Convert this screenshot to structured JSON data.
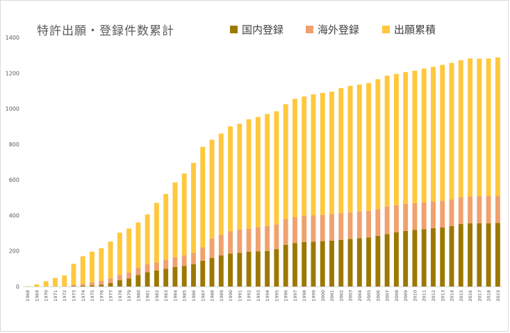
{
  "chart_data": {
    "type": "bar",
    "stacked": true,
    "title": "特許出願・登録件数累計",
    "legend_position": "top",
    "grid": false,
    "ylim": [
      0,
      1400
    ],
    "yticks": [
      0,
      200,
      400,
      600,
      800,
      1000,
      1200,
      1400
    ],
    "categories": [
      "1968",
      "1969",
      "1970",
      "1971",
      "1972",
      "1973",
      "1974",
      "1975",
      "1976",
      "1977",
      "1978",
      "1979",
      "1980",
      "1981",
      "1982",
      "1983",
      "1984",
      "1985",
      "1986",
      "1987",
      "1988",
      "1989",
      "1990",
      "1991",
      "1992",
      "1993",
      "1994",
      "1995",
      "1996",
      "1997",
      "1998",
      "1999",
      "2000",
      "2001",
      "2002",
      "2003",
      "2004",
      "2005",
      "2006",
      "2007",
      "2008",
      "2009",
      "2010",
      "2011",
      "2012",
      "2013",
      "2014",
      "2015",
      "2016",
      "2017",
      "2018",
      "2019"
    ],
    "series": [
      {
        "name": "国内登録",
        "color": "#9c7800",
        "values": [
          0,
          0,
          0,
          0,
          0,
          2,
          4,
          6,
          10,
          20,
          35,
          45,
          65,
          80,
          90,
          100,
          110,
          115,
          125,
          145,
          160,
          175,
          185,
          190,
          195,
          198,
          200,
          210,
          235,
          245,
          250,
          252,
          255,
          258,
          262,
          268,
          272,
          276,
          285,
          295,
          305,
          312,
          318,
          322,
          328,
          332,
          340,
          352,
          355,
          355,
          355,
          357
        ]
      },
      {
        "name": "海外登録",
        "color": "#f0a16e",
        "values": [
          0,
          0,
          0,
          0,
          0,
          8,
          10,
          18,
          22,
          25,
          30,
          33,
          40,
          45,
          45,
          50,
          55,
          60,
          65,
          75,
          110,
          115,
          125,
          130,
          130,
          135,
          140,
          140,
          145,
          145,
          148,
          148,
          148,
          150,
          150,
          150,
          150,
          150,
          150,
          155,
          152,
          153,
          150,
          150,
          150,
          150,
          150,
          150,
          150,
          152,
          152,
          152
        ]
      },
      {
        "name": "出願累積",
        "color": "#ffc83d",
        "values": [
          2,
          12,
          30,
          48,
          62,
          118,
          156,
          172,
          183,
          208,
          238,
          248,
          255,
          280,
          335,
          370,
          420,
          460,
          505,
          565,
          555,
          570,
          590,
          595,
          615,
          620,
          630,
          635,
          645,
          665,
          670,
          680,
          685,
          687,
          703,
          710,
          713,
          718,
          730,
          735,
          738,
          740,
          745,
          753,
          757,
          764,
          767,
          770,
          777,
          774,
          775,
          779
        ]
      }
    ]
  }
}
